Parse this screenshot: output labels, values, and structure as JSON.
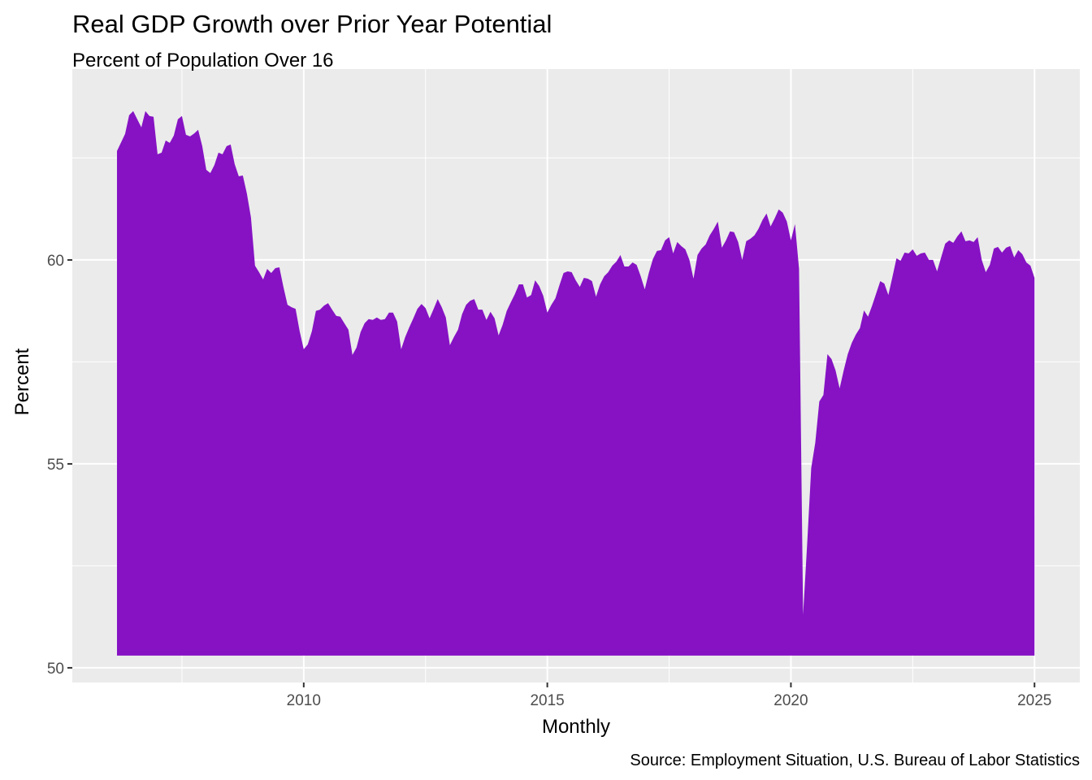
{
  "chart_data": {
    "type": "area",
    "title": "Real GDP Growth over Prior Year Potential",
    "subtitle": "Percent of Population Over 16",
    "x_label": "Monthly",
    "y_label": "Percent",
    "caption": "Source: Employment Situation, U.S. Bureau of Labor Statistics",
    "color": "#8612c4",
    "area_floor": 50.3,
    "xlim": [
      2005.25,
      2025.93
    ],
    "ylim": [
      49.64,
      64.68
    ],
    "xticks": [
      2010,
      2015,
      2020,
      2025
    ],
    "xminor": [
      2007.5,
      2012.5,
      2017.5,
      2022.5
    ],
    "yticks": [
      50,
      55,
      60
    ],
    "yminor": [
      52.5,
      57.5,
      62.5
    ],
    "grid": true,
    "x": [
      2006.167,
      2006.25,
      2006.333,
      2006.417,
      2006.5,
      2006.583,
      2006.667,
      2006.75,
      2006.833,
      2006.917,
      2007,
      2007.083,
      2007.167,
      2007.25,
      2007.333,
      2007.417,
      2007.5,
      2007.583,
      2007.667,
      2007.75,
      2007.833,
      2007.917,
      2008,
      2008.083,
      2008.167,
      2008.25,
      2008.333,
      2008.417,
      2008.5,
      2008.583,
      2008.667,
      2008.75,
      2008.833,
      2008.917,
      2009,
      2009.083,
      2009.167,
      2009.25,
      2009.333,
      2009.417,
      2009.5,
      2009.583,
      2009.667,
      2009.75,
      2009.833,
      2009.917,
      2010,
      2010.083,
      2010.167,
      2010.25,
      2010.333,
      2010.417,
      2010.5,
      2010.583,
      2010.667,
      2010.75,
      2010.833,
      2010.917,
      2011,
      2011.083,
      2011.167,
      2011.25,
      2011.333,
      2011.417,
      2011.5,
      2011.583,
      2011.667,
      2011.75,
      2011.833,
      2011.917,
      2012,
      2012.083,
      2012.167,
      2012.25,
      2012.333,
      2012.417,
      2012.5,
      2012.583,
      2012.667,
      2012.75,
      2012.833,
      2012.917,
      2013,
      2013.083,
      2013.167,
      2013.25,
      2013.333,
      2013.417,
      2013.5,
      2013.583,
      2013.667,
      2013.75,
      2013.833,
      2013.917,
      2014,
      2014.083,
      2014.167,
      2014.25,
      2014.333,
      2014.417,
      2014.5,
      2014.583,
      2014.667,
      2014.75,
      2014.833,
      2014.917,
      2015,
      2015.083,
      2015.167,
      2015.25,
      2015.333,
      2015.417,
      2015.5,
      2015.583,
      2015.667,
      2015.75,
      2015.833,
      2015.917,
      2016,
      2016.083,
      2016.167,
      2016.25,
      2016.333,
      2016.417,
      2016.5,
      2016.583,
      2016.667,
      2016.75,
      2016.833,
      2016.917,
      2017,
      2017.083,
      2017.167,
      2017.25,
      2017.333,
      2017.417,
      2017.5,
      2017.583,
      2017.667,
      2017.75,
      2017.833,
      2017.917,
      2018,
      2018.083,
      2018.167,
      2018.25,
      2018.333,
      2018.417,
      2018.5,
      2018.583,
      2018.667,
      2018.75,
      2018.833,
      2018.917,
      2019,
      2019.083,
      2019.167,
      2019.25,
      2019.333,
      2019.417,
      2019.5,
      2019.583,
      2019.667,
      2019.75,
      2019.833,
      2019.917,
      2020,
      2020.083,
      2020.167,
      2020.25,
      2020.333,
      2020.417,
      2020.5,
      2020.583,
      2020.667,
      2020.75,
      2020.833,
      2020.917,
      2021,
      2021.083,
      2021.167,
      2021.25,
      2021.333,
      2021.417,
      2021.5,
      2021.583,
      2021.667,
      2021.75,
      2021.833,
      2021.917,
      2022,
      2022.083,
      2022.167,
      2022.25,
      2022.333,
      2022.417,
      2022.5,
      2022.583,
      2022.667,
      2022.75,
      2022.833,
      2022.917,
      2023,
      2023.083,
      2023.167,
      2023.25,
      2023.333,
      2023.417,
      2023.5,
      2023.583,
      2023.667,
      2023.75,
      2023.833,
      2023.917,
      2024,
      2024.083,
      2024.167,
      2024.25,
      2024.333,
      2024.417,
      2024.5,
      2024.583,
      2024.667,
      2024.75,
      2024.833,
      2024.917,
      2025
    ],
    "values": [
      62.67,
      62.88,
      63.09,
      63.55,
      63.65,
      63.45,
      63.25,
      63.65,
      63.53,
      63.51,
      62.59,
      62.63,
      62.93,
      62.87,
      63.05,
      63.45,
      63.53,
      63.07,
      63.03,
      63.1,
      63.19,
      62.79,
      62.21,
      62.13,
      62.33,
      62.63,
      62.59,
      62.79,
      62.83,
      62.35,
      62.05,
      62.07,
      61.63,
      61.04,
      59.86,
      59.7,
      59.52,
      59.78,
      59.68,
      59.8,
      59.82,
      59.34,
      58.9,
      58.84,
      58.8,
      58.25,
      57.81,
      57.93,
      58.25,
      58.75,
      58.78,
      58.88,
      58.94,
      58.78,
      58.63,
      58.61,
      58.45,
      58.29,
      57.67,
      57.85,
      58.23,
      58.45,
      58.55,
      58.53,
      58.59,
      58.53,
      58.55,
      58.71,
      58.71,
      58.49,
      57.81,
      58.11,
      58.35,
      58.57,
      58.8,
      58.92,
      58.82,
      58.57,
      58.8,
      59.04,
      58.84,
      58.59,
      57.91,
      58.11,
      58.29,
      58.67,
      58.9,
      59.0,
      59.04,
      58.78,
      58.78,
      58.53,
      58.73,
      58.57,
      58.15,
      58.41,
      58.75,
      58.96,
      59.16,
      59.4,
      59.4,
      59.08,
      59.14,
      59.5,
      59.36,
      59.12,
      58.71,
      58.9,
      59.06,
      59.38,
      59.68,
      59.72,
      59.7,
      59.5,
      59.34,
      59.56,
      59.54,
      59.48,
      59.1,
      59.4,
      59.6,
      59.7,
      59.86,
      59.96,
      60.12,
      59.84,
      59.84,
      59.94,
      59.88,
      59.6,
      59.28,
      59.68,
      60.02,
      60.22,
      60.24,
      60.48,
      60.56,
      60.16,
      60.44,
      60.34,
      60.26,
      60.0,
      59.54,
      60.12,
      60.28,
      60.38,
      60.6,
      60.76,
      60.94,
      60.3,
      60.48,
      60.7,
      60.68,
      60.44,
      60.0,
      60.46,
      60.52,
      60.6,
      60.76,
      60.98,
      61.14,
      60.82,
      61.02,
      61.24,
      61.16,
      60.94,
      60.48,
      60.88,
      59.78,
      51.3,
      53.03,
      54.9,
      55.52,
      56.53,
      56.69,
      57.69,
      57.57,
      57.29,
      56.85,
      57.29,
      57.69,
      57.97,
      58.17,
      58.33,
      58.76,
      58.61,
      58.88,
      59.18,
      59.48,
      59.42,
      59.14,
      59.58,
      60.04,
      59.98,
      60.18,
      60.16,
      60.26,
      60.1,
      60.16,
      60.18,
      60.0,
      60.0,
      59.72,
      60.06,
      60.4,
      60.48,
      60.42,
      60.58,
      60.7,
      60.46,
      60.48,
      60.44,
      60.56,
      60.0,
      59.7,
      59.88,
      60.28,
      60.32,
      60.18,
      60.3,
      60.34,
      60.06,
      60.24,
      60.14,
      59.94,
      59.86,
      59.56
    ]
  }
}
